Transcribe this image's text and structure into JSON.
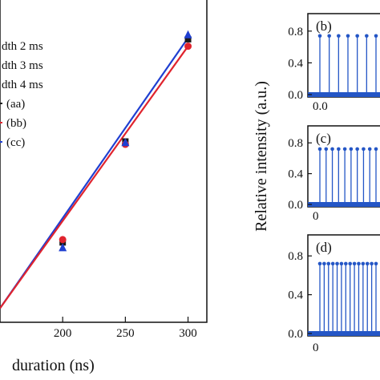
{
  "chart_data": [
    {
      "type": "scatter",
      "xlabel": "duration (ns)",
      "ylabel": "",
      "x_ticks": [
        "200",
        "250",
        "300"
      ],
      "legend_placement": "top-left",
      "legend": [
        {
          "text": "dth 2 ms",
          "marker": "square",
          "color": "#1a1a1a"
        },
        {
          "text": "dth 3 ms",
          "marker": "circle",
          "color": "#e0242e"
        },
        {
          "text": "dth 4 ms",
          "marker": "triangle",
          "color": "#1f3fd1"
        },
        {
          "text": "(aa)",
          "marker": "line",
          "color": "#1a1a1a"
        },
        {
          "text": "(bb)",
          "marker": "line",
          "color": "#e0242e"
        },
        {
          "text": "(cc)",
          "marker": "line",
          "color": "#1f3fd1"
        }
      ],
      "series": [
        {
          "marker": "square",
          "color": "#1a1a1a",
          "x": [
            200,
            250,
            300
          ],
          "y": [
            0.235,
            0.595,
            0.96
          ]
        },
        {
          "marker": "circle",
          "color": "#e0242e",
          "x": [
            200,
            250,
            300
          ],
          "y": [
            0.245,
            0.585,
            0.935
          ]
        },
        {
          "marker": "triangle",
          "color": "#1f3fd1",
          "x": [
            200,
            250,
            300
          ],
          "y": [
            0.215,
            0.59,
            0.975
          ]
        }
      ],
      "fit_lines": [
        {
          "color": "#1f3fd1",
          "x": [
            150,
            300
          ],
          "y": [
            0.0,
            0.965
          ]
        },
        {
          "color": "#e0242e",
          "x": [
            150,
            300
          ],
          "y": [
            0.0,
            0.935
          ]
        }
      ],
      "xlim": [
        150,
        315
      ],
      "ylim": [
        -0.05,
        1.1
      ]
    },
    {
      "type": "bar",
      "panel": "(b)",
      "color": "#2456c6",
      "ylabel": "Relative intensity (a.u.)",
      "yticks": [
        "0.8",
        "0.4",
        "0.0"
      ],
      "x_tick_label": "0.0",
      "ylim": [
        0,
        1.0
      ],
      "values": [
        0.74,
        0.74,
        0.74,
        0.74,
        0.74,
        0.74,
        0.74
      ]
    },
    {
      "type": "bar",
      "panel": "(c)",
      "color": "#2456c6",
      "yticks": [
        "0.8",
        "0.4",
        "0.0"
      ],
      "x_tick_label": "0",
      "ylim": [
        0,
        1.0
      ],
      "values": [
        0.72,
        0.72,
        0.72,
        0.72,
        0.72,
        0.72,
        0.72,
        0.72,
        0.72,
        0.72
      ]
    },
    {
      "type": "bar",
      "panel": "(d)",
      "color": "#2456c6",
      "yticks": [
        "0.8",
        "0.4",
        "0.0"
      ],
      "x_tick_label": "0",
      "ylim": [
        0,
        1.0
      ],
      "values": [
        0.72,
        0.72,
        0.72,
        0.72,
        0.72,
        0.72,
        0.72,
        0.72,
        0.72,
        0.72,
        0.72,
        0.72,
        0.72,
        0.72
      ]
    }
  ]
}
